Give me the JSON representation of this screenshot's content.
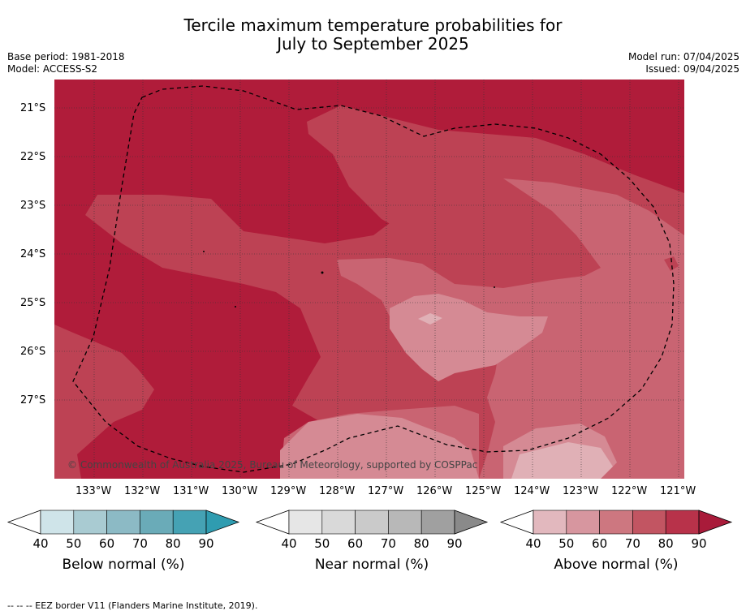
{
  "title": {
    "line1": "Tercile maximum temperature probabilities for",
    "line2": "July to September 2025"
  },
  "meta": {
    "base_period": "Base period: 1981-2018",
    "model": "Model: ACCESS-S2",
    "model_run": "Model run: 07/04/2025",
    "issued": "Issued: 09/04/2025"
  },
  "map": {
    "latitudes": [
      "21°S",
      "22°S",
      "23°S",
      "24°S",
      "25°S",
      "26°S",
      "27°S"
    ],
    "longitudes": [
      "133°W",
      "132°W",
      "131°W",
      "130°W",
      "129°W",
      "128°W",
      "127°W",
      "126°W",
      "125°W",
      "124°W",
      "123°W",
      "122°W",
      "121°W"
    ],
    "copyright": "© Commonwealth of Australia 2025, Bureau of Meteorology, supported by COSPPac",
    "colors": {
      "p90": "#b01c3a",
      "p80": "#bd4254",
      "p70": "#c96472",
      "p60": "#d58a94",
      "p50": "#e0b0b6"
    }
  },
  "colorbars": [
    {
      "name": "below",
      "label": "Below normal (%)",
      "ticks": [
        "40",
        "50",
        "60",
        "70",
        "80",
        "90"
      ],
      "colors": [
        "#cfe4e9",
        "#a9cbd2",
        "#8cbac5",
        "#6aabb8",
        "#45a2b4",
        "#2f9cb0"
      ]
    },
    {
      "name": "near",
      "label": "Near normal (%)",
      "ticks": [
        "40",
        "50",
        "60",
        "70",
        "80",
        "90"
      ],
      "colors": [
        "#e6e6e6",
        "#d9d9d9",
        "#cacaca",
        "#b8b8b8",
        "#a0a0a0",
        "#8a8a8a"
      ]
    },
    {
      "name": "above",
      "label": "Above normal (%)",
      "ticks": [
        "40",
        "50",
        "60",
        "70",
        "80",
        "90"
      ],
      "colors": [
        "#e2b8be",
        "#d7969f",
        "#cd7780",
        "#c25562",
        "#b8324a",
        "#a91b3a"
      ]
    }
  ],
  "footer": "--  --  -- EEZ border V11 (Flanders Marine Institute, 2019)."
}
